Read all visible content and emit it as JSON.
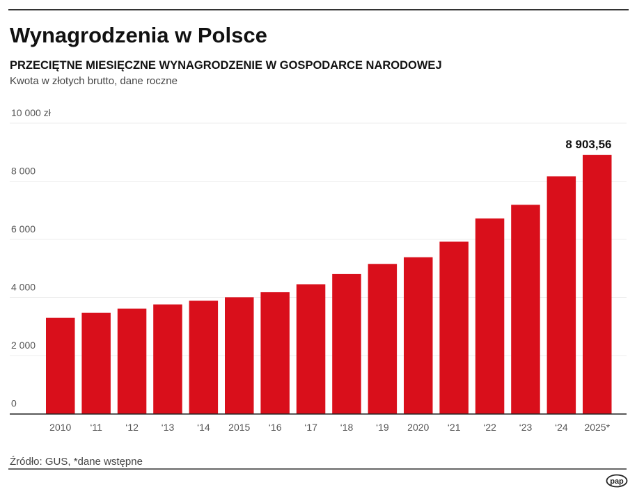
{
  "header": {
    "title": "Wynagrodzenia w Polsce",
    "subtitle": "PRZECIĘTNE MIESIĘCZNE WYNAGRODZENIE W GOSPODARCE NARODOWEJ",
    "description": "Kwota w złotych brutto, dane roczne"
  },
  "chart_data": {
    "type": "bar",
    "title": "Wynagrodzenia w Polsce",
    "xlabel": "",
    "ylabel": "",
    "ylim": [
      0,
      10000
    ],
    "grid": true,
    "y_ticks": [
      {
        "value": 0,
        "label": "0"
      },
      {
        "value": 2000,
        "label": "2 000"
      },
      {
        "value": 4000,
        "label": "4 000"
      },
      {
        "value": 6000,
        "label": "6 000"
      },
      {
        "value": 8000,
        "label": "8 000"
      },
      {
        "value": 10000,
        "label": "10 000 zł"
      }
    ],
    "categories": [
      "2010",
      "‘11",
      "‘12",
      "‘13",
      "‘14",
      "2015",
      "‘16",
      "‘17",
      "‘18",
      "‘19",
      "2020",
      "‘21",
      "‘22",
      "‘23",
      "‘24",
      "2025*"
    ],
    "values": [
      3300,
      3470,
      3615,
      3760,
      3890,
      4005,
      4180,
      4455,
      4805,
      5155,
      5385,
      5920,
      6720,
      7190,
      8170,
      8903.56
    ],
    "data_labels": [
      {
        "index": 15,
        "label": "8 903,56"
      }
    ],
    "bar_color": "#d90f1b"
  },
  "footer": {
    "source": "Źródło: GUS, *dane wstępne",
    "logo": "pap"
  }
}
